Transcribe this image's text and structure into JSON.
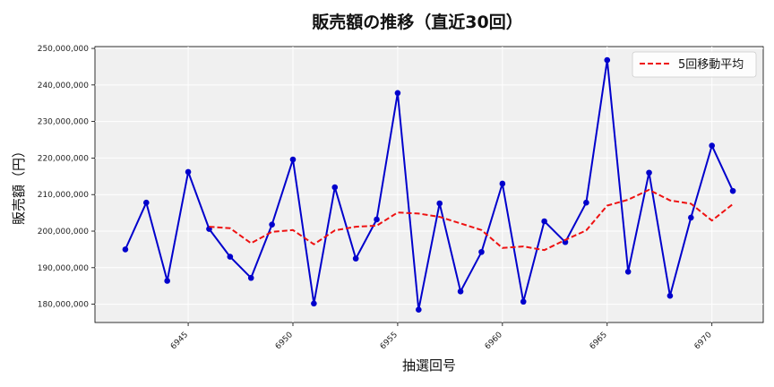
{
  "chart_data": {
    "type": "line",
    "title": "販売額の推移（直近30回）",
    "xlabel": "抽選回号",
    "ylabel": "販売額（円）",
    "x": [
      6942,
      6943,
      6944,
      6945,
      6946,
      6947,
      6948,
      6949,
      6950,
      6951,
      6952,
      6953,
      6954,
      6955,
      6956,
      6957,
      6958,
      6959,
      6960,
      6961,
      6962,
      6963,
      6964,
      6965,
      6966,
      6967,
      6968,
      6969,
      6970,
      6971
    ],
    "xticks": [
      6945,
      6950,
      6955,
      6960,
      6965,
      6970
    ],
    "xlim": [
      6940.55,
      6972.45
    ],
    "ylim": [
      175000000,
      250500000
    ],
    "yticks": [
      180000000,
      190000000,
      200000000,
      210000000,
      220000000,
      230000000,
      240000000,
      250000000
    ],
    "ytick_labels": [
      "180,000,000",
      "190,000,000",
      "200,000,000",
      "210,000,000",
      "220,000,000",
      "230,000,000",
      "240,000,000",
      "250,000,000"
    ],
    "grid": true,
    "legend_position": "top-right",
    "series": [
      {
        "name": "",
        "color": "#0000cc",
        "style": "solid-markers",
        "values": [
          195000000,
          207800000,
          186400000,
          216200000,
          200600000,
          193000000,
          187200000,
          201800000,
          219600000,
          180200000,
          212000000,
          192500000,
          203200000,
          237800000,
          178500000,
          207600000,
          183500000,
          194300000,
          213000000,
          180700000,
          202700000,
          197000000,
          207800000,
          246800000,
          188900000,
          216000000,
          182300000,
          203700000,
          223400000,
          211000000
        ]
      },
      {
        "name": "5回移動平均",
        "color": "#ee1111",
        "style": "dashed",
        "values": [
          null,
          null,
          null,
          null,
          201200000,
          200800000,
          196700000,
          199800000,
          200300000,
          196400000,
          200200000,
          201200000,
          201500000,
          205100000,
          204800000,
          203900000,
          202100000,
          200300000,
          195400000,
          195800000,
          194800000,
          197600000,
          200200000,
          207000000,
          208600000,
          211300000,
          208400000,
          207500000,
          202900000,
          207400000
        ]
      }
    ]
  }
}
